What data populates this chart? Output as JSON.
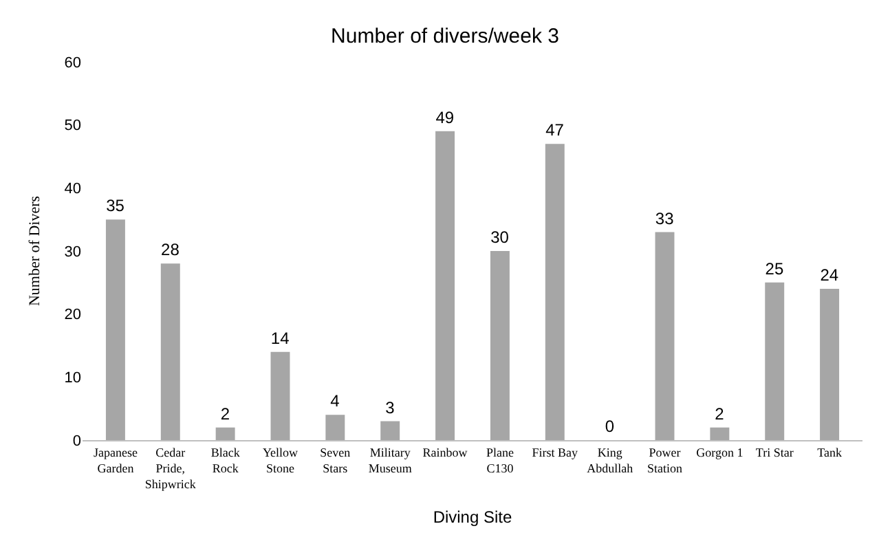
{
  "chart_data": {
    "type": "bar",
    "title": "Number of divers/week 3",
    "xlabel": "Diving Site",
    "ylabel": "Number of Divers",
    "categories": [
      "Japanese Garden",
      "Cedar Pride, Shipwrick",
      "Black Rock",
      "Yellow Stone",
      "Seven Stars",
      "Military Museum",
      "Rainbow",
      "Plane C130",
      "First Bay",
      "King Abdullah",
      "Power Station",
      "Gorgon 1",
      "Tri Star",
      "Tank"
    ],
    "values": [
      35,
      28,
      2,
      14,
      4,
      3,
      49,
      30,
      47,
      0,
      33,
      2,
      25,
      24
    ],
    "color": "#a6a6a6",
    "ylim": [
      0,
      60
    ],
    "yticks": [
      0,
      10,
      20,
      30,
      40,
      50,
      60
    ],
    "grid": false,
    "data_labels": true
  }
}
